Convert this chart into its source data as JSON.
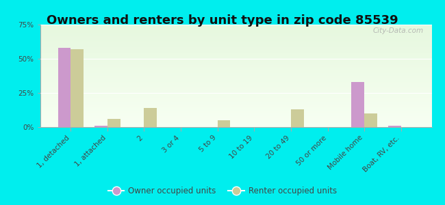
{
  "title": "Owners and renters by unit type in zip code 85539",
  "categories": [
    "1, detached",
    "1, attached",
    "2",
    "3 or 4",
    "5 to 9",
    "10 to 19",
    "20 to 49",
    "50 or more",
    "Mobile home",
    "Boat, RV, etc."
  ],
  "owner_values": [
    58,
    1,
    0,
    0,
    0,
    0,
    0,
    0,
    33,
    1
  ],
  "renter_values": [
    57,
    6,
    14,
    0,
    5,
    0,
    13,
    0,
    10,
    0
  ],
  "owner_color": "#cc99cc",
  "renter_color": "#cccc99",
  "figure_bg": "#00eeee",
  "ylim": [
    0,
    75
  ],
  "yticks": [
    0,
    25,
    50,
    75
  ],
  "bar_width": 0.35,
  "legend_owner": "Owner occupied units",
  "legend_renter": "Renter occupied units",
  "watermark": "City-Data.com",
  "title_fontsize": 13,
  "tick_fontsize": 7.5
}
